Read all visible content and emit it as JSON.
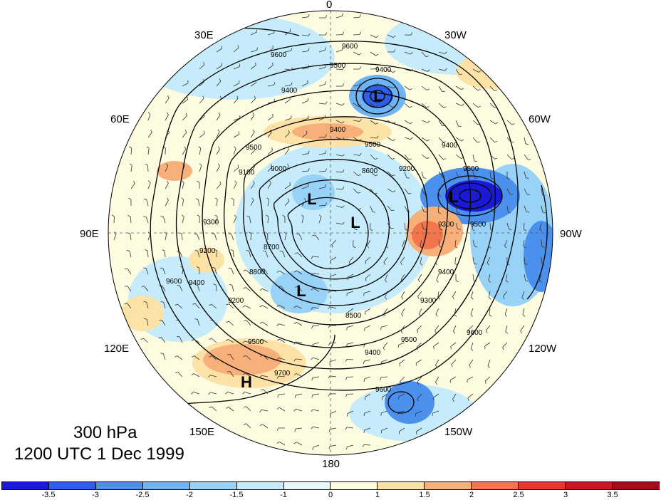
{
  "title": {
    "level": "300 hPa",
    "time": "1200 UTC 1 Dec 1999"
  },
  "longitude_labels": [
    "0",
    "30W",
    "60W",
    "90W",
    "120W",
    "150W",
    "180",
    "150E",
    "120E",
    "90E",
    "60E",
    "30E"
  ],
  "pressure_systems": [
    {
      "label": "L",
      "id": "low-north-atlantic"
    },
    {
      "label": "L",
      "id": "low-labrador"
    },
    {
      "label": "L",
      "id": "low-siberia"
    },
    {
      "label": "L",
      "id": "low-arctic"
    },
    {
      "label": "L",
      "id": "low-east-siberia"
    },
    {
      "label": "H",
      "id": "high-japan"
    }
  ],
  "contour_labels": [
    "9600",
    "9600",
    "9500",
    "9400",
    "9400",
    "9400",
    "9500",
    "9400",
    "9500",
    "9100",
    "9000",
    "8600",
    "9200",
    "9500",
    "9300",
    "9300",
    "9500",
    "9200",
    "9400",
    "8700",
    "8800",
    "8500",
    "9300",
    "9200",
    "9400",
    "9500",
    "9600",
    "9700",
    "9600",
    "9500",
    "9400",
    "9600"
  ],
  "colorbar": {
    "ticks": [
      "-3.5",
      "-3",
      "-2.5",
      "-2",
      "-1.5",
      "-1",
      "0",
      "1",
      "1.5",
      "2",
      "2.5",
      "3",
      "3.5"
    ],
    "colors": [
      "#1a1ad6",
      "#2e5ee6",
      "#4a90ec",
      "#6fb4f2",
      "#98d2f6",
      "#c6ecfb",
      "#e8f7fc",
      "#fdfbe0",
      "#fde2a8",
      "#f8b07a",
      "#f2764d",
      "#e23b30",
      "#c61a22",
      "#a10d18"
    ]
  }
}
